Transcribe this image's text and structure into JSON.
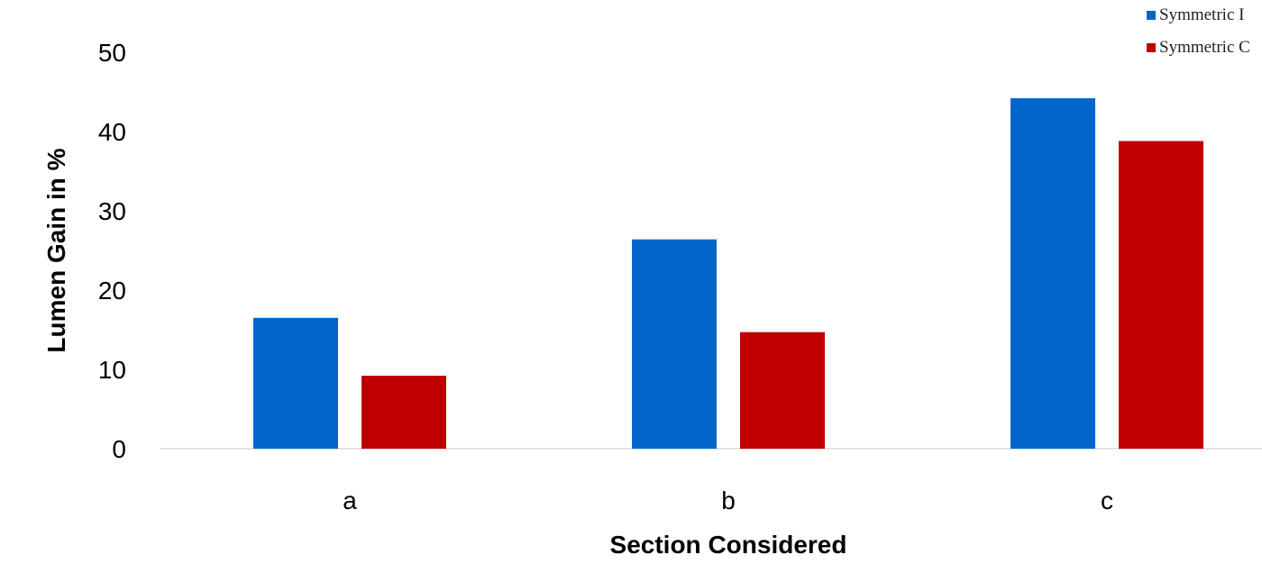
{
  "chart_data": {
    "type": "bar",
    "categories": [
      "a",
      "b",
      "c"
    ],
    "series": [
      {
        "name": "Symmetric I",
        "color": "#0066CC",
        "values": [
          16.5,
          26.4,
          44.2
        ]
      },
      {
        "name": "Symmetric C",
        "color": "#C00000",
        "values": [
          9.2,
          14.7,
          38.8
        ]
      }
    ],
    "xlabel": "Section Considered",
    "ylabel": "Lumen Gain in %",
    "ylim": [
      0,
      50
    ],
    "yticks": [
      0,
      10,
      20,
      30,
      40,
      50
    ],
    "grid": false,
    "legend_position": "top-right"
  }
}
